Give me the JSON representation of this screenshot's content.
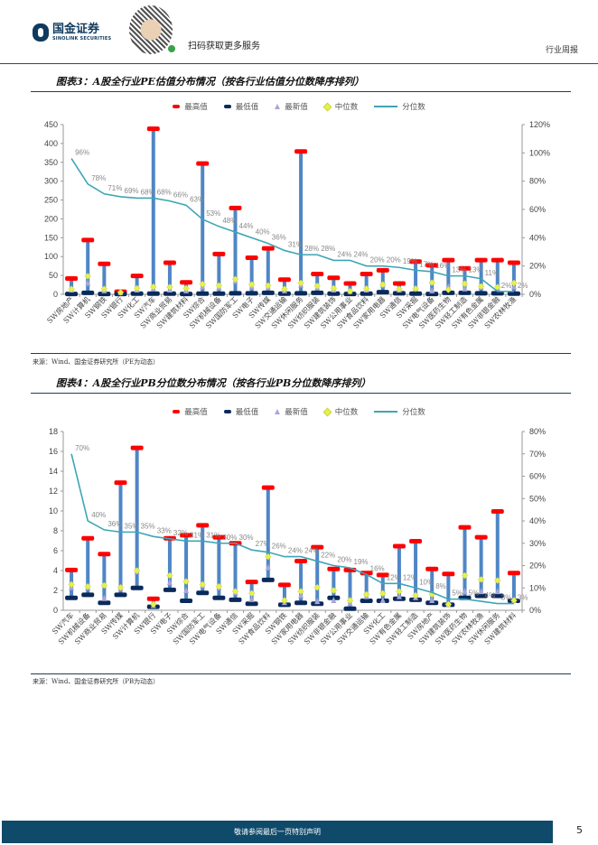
{
  "header": {
    "logo_cn": "国金证券",
    "logo_en": "SINOLINK SECURITIES",
    "scan_text": "扫码获取更多服务",
    "report_type": "行业周报"
  },
  "legend": {
    "max": "最高值",
    "min": "最低值",
    "latest": "最新值",
    "median": "中位数",
    "percentile": "分位数"
  },
  "colors": {
    "max": "#ff0000",
    "min": "#0a2a5a",
    "latest": "#a9a6d6",
    "median": "#e8f04a",
    "percentile": "#3ea5b5",
    "range_bar": "#4f86c6"
  },
  "figure3": {
    "title": "图表3：A股全行业PE估值分布情况（按各行业估值分位数降序排列）",
    "source": "来源：Wind、国金证券研究所（PE为动态）"
  },
  "figure4": {
    "title": "图表4：A股全行业PB分位数分布情况（按各行业PB分位数降序排列）",
    "source": "来源：Wind、国金证券研究所（PB为动态）"
  },
  "chart_data": [
    {
      "type": "bar",
      "title": "A股全行业PE估值分布情况",
      "ylim": [
        0,
        450
      ],
      "yticks": [
        0,
        50,
        100,
        150,
        200,
        250,
        300,
        350,
        400,
        450
      ],
      "y2lim": [
        0,
        120
      ],
      "y2ticks": [
        "0%",
        "20%",
        "40%",
        "60%",
        "80%",
        "100%",
        "120%"
      ],
      "categories": [
        "SW房地产",
        "SW计算机",
        "SW钢铁",
        "SW银行",
        "SW化工",
        "SW汽车",
        "SW商业贸易",
        "SW建筑材料",
        "SW综合",
        "SW机械设备",
        "SW国防军工",
        "SW电子",
        "SW传媒",
        "SW交通运输",
        "SW休闲服务",
        "SW纺织服装",
        "SW建筑装饰",
        "SW公用事业",
        "SW食品饮料",
        "SW家用电器",
        "SW通信",
        "SW采掘",
        "SW电气设备",
        "SW医药生物",
        "SW轻工制造",
        "SW有色金属",
        "SW非银金融",
        "SW农林牧渔"
      ],
      "series": [
        {
          "name": "最高值",
          "values": [
            43,
            145,
            82,
            8,
            50,
            440,
            85,
            33,
            348,
            108,
            230,
            98,
            123,
            40,
            380,
            55,
            45,
            30,
            55,
            65,
            30,
            88,
            78,
            92,
            70,
            92,
            92,
            85
          ]
        },
        {
          "name": "最低值",
          "values": [
            2,
            5,
            2,
            2,
            3,
            3,
            3,
            2,
            3,
            3,
            4,
            4,
            5,
            3,
            4,
            5,
            3,
            2,
            3,
            7,
            4,
            3,
            2,
            5,
            5,
            4,
            4,
            3
          ]
        },
        {
          "name": "最新值",
          "values": [
            12,
            30,
            10,
            5,
            12,
            15,
            12,
            10,
            20,
            18,
            35,
            20,
            18,
            10,
            25,
            18,
            12,
            8,
            12,
            25,
            12,
            15,
            10,
            20,
            15,
            20,
            18,
            20
          ]
        },
        {
          "name": "中位数",
          "values": [
            14,
            48,
            14,
            5,
            16,
            20,
            19,
            16,
            27,
            23,
            40,
            26,
            23,
            14,
            30,
            22,
            16,
            8,
            15,
            26,
            14,
            15,
            31,
            12,
            28,
            21,
            19,
            30
          ]
        },
        {
          "name": "分位数",
          "values": [
            96,
            78,
            71,
            69,
            68,
            68,
            66,
            63,
            53,
            48,
            44,
            40,
            36,
            31,
            28,
            28,
            24,
            24,
            20,
            20,
            19,
            17,
            16,
            13,
            13,
            11,
            2,
            2
          ]
        }
      ]
    },
    {
      "type": "bar",
      "title": "A股全行业PB分位数分布情况",
      "ylim": [
        0,
        18
      ],
      "yticks": [
        0,
        2,
        4,
        6,
        8,
        10,
        12,
        14,
        16,
        18
      ],
      "y2lim": [
        0,
        80
      ],
      "y2ticks": [
        "0%",
        "10%",
        "20%",
        "30%",
        "40%",
        "50%",
        "60%",
        "70%",
        "80%"
      ],
      "categories": [
        "SW汽车",
        "SW机械设备",
        "SW商业贸易",
        "SW传媒",
        "SW计算机",
        "SW银行",
        "SW电子",
        "SW综合",
        "SW国防军工",
        "SW电气设备",
        "SW通信",
        "SW采掘",
        "SW食品饮料",
        "SW钢铁",
        "SW家用电器",
        "SW纺织服装",
        "SW非银金融",
        "SW公用事业",
        "SW交通运输",
        "SW化工",
        "SW有色金属",
        "SW轻工制造",
        "SW房地产",
        "SW建筑装饰",
        "SW医药生物",
        "SW农林牧渔",
        "SW休闲服务",
        "SW建筑材料"
      ],
      "series": [
        {
          "name": "最高值",
          "values": [
            4.1,
            7.3,
            5.7,
            12.9,
            16.4,
            1.2,
            7.3,
            7.6,
            8.6,
            7.4,
            6.8,
            2.9,
            12.4,
            2.6,
            5.0,
            6.4,
            4.2,
            4.1,
            3.8,
            3.6,
            6.5,
            7.0,
            4.2,
            3.7,
            8.4,
            7.4,
            10.0,
            3.8
          ]
        },
        {
          "name": "最低值",
          "values": [
            1.3,
            1.6,
            0.8,
            1.6,
            2.3,
            0.4,
            2.1,
            1.0,
            1.8,
            1.3,
            1.1,
            0.7,
            3.1,
            0.6,
            0.8,
            0.7,
            1.3,
            0.2,
            1.0,
            1.0,
            1.2,
            1.1,
            0.8,
            0.6,
            1.3,
            1.5,
            1.5,
            1.0
          ]
        },
        {
          "name": "最新值",
          "values": [
            2.3,
            2.3,
            1.2,
            2.2,
            3.9,
            0.5,
            2.8,
            2.0,
            2.5,
            2.3,
            1.8,
            1.1,
            4.3,
            0.8,
            1.5,
            0.9,
            1.0,
            0.7,
            1.4,
            1.0,
            1.4,
            1.3,
            1.0,
            0.6,
            1.9,
            1.9,
            1.9,
            1.0
          ]
        },
        {
          "name": "中位数",
          "values": [
            2.6,
            2.4,
            2.5,
            2.3,
            4.0,
            0.6,
            3.5,
            2.9,
            2.6,
            2.4,
            1.9,
            1.7,
            5.4,
            1.0,
            1.9,
            2.3,
            2.0,
            1.0,
            1.6,
            1.7,
            1.9,
            1.5,
            1.6,
            0.6,
            3.5,
            3.1,
            3.0,
            1.0
          ]
        },
        {
          "name": "分位数",
          "values": [
            70,
            40,
            36,
            35,
            35,
            33,
            32,
            31,
            31,
            30,
            30,
            27,
            26,
            24,
            24,
            22,
            20,
            19,
            16,
            12,
            12,
            10,
            8,
            5,
            5,
            4,
            3,
            3
          ]
        }
      ]
    }
  ],
  "footer": {
    "disclaimer": "敬请参阅最后一页特别声明",
    "page_number": "5"
  }
}
